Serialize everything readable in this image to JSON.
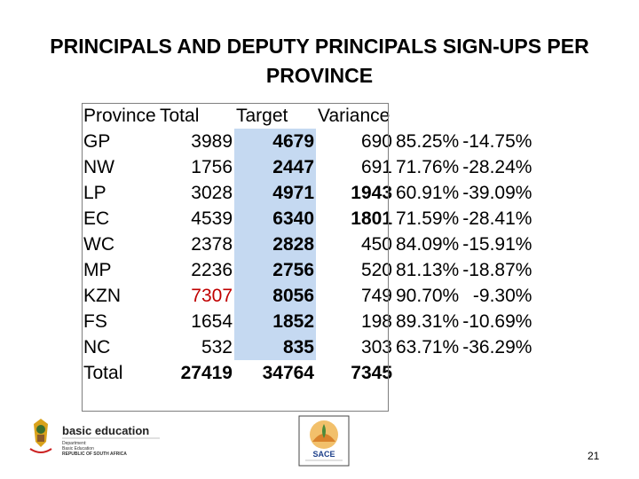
{
  "title_line1": "PRINCIPALS AND DEPUTY PRINCIPALS SIGN-UPS PER",
  "title_line2": "PROVINCE",
  "headers": [
    "Province",
    "Total",
    "Target",
    "Variance"
  ],
  "rows": [
    {
      "province": "GP",
      "total": "3989",
      "target": "4679",
      "variance": "690",
      "pct": "85.25%",
      "neg": "-14.75%"
    },
    {
      "province": "NW",
      "total": "1756",
      "target": "2447",
      "variance": "691",
      "pct": "71.76%",
      "neg": "-28.24%"
    },
    {
      "province": "LP",
      "total": "3028",
      "target": "4971",
      "variance": "1943",
      "pct": "60.91%",
      "neg": "-39.09%"
    },
    {
      "province": "EC",
      "total": "4539",
      "target": "6340",
      "variance": "1801",
      "pct": "71.59%",
      "neg": "-28.41%"
    },
    {
      "province": "WC",
      "total": "2378",
      "target": "2828",
      "variance": "450",
      "pct": "84.09%",
      "neg": "-15.91%"
    },
    {
      "province": "MP",
      "total": "2236",
      "target": "2756",
      "variance": "520",
      "pct": "81.13%",
      "neg": "-18.87%"
    },
    {
      "province": "KZN",
      "total": "7307",
      "target": "8056",
      "variance": "749",
      "pct": "90.70%",
      "neg": "-9.30%"
    },
    {
      "province": "FS",
      "total": "1654",
      "target": "1852",
      "variance": "198",
      "pct": "89.31%",
      "neg": "-10.69%"
    },
    {
      "province": "NC",
      "total": "532",
      "target": "835",
      "variance": "303",
      "pct": "63.71%",
      "neg": "-36.29%"
    }
  ],
  "totals": {
    "province": "Total",
    "total": "27419",
    "target": "34764",
    "variance": "7345"
  },
  "logo_basic_education": {
    "name": "basic education",
    "line1": "Department:",
    "line2": "Basic Education",
    "line3": "REPUBLIC OF SOUTH AFRICA"
  },
  "logo_sace": {
    "name": "SACE"
  },
  "page_number": "21",
  "colors": {
    "shade": "#c5d9f1",
    "red": "#c00000"
  }
}
